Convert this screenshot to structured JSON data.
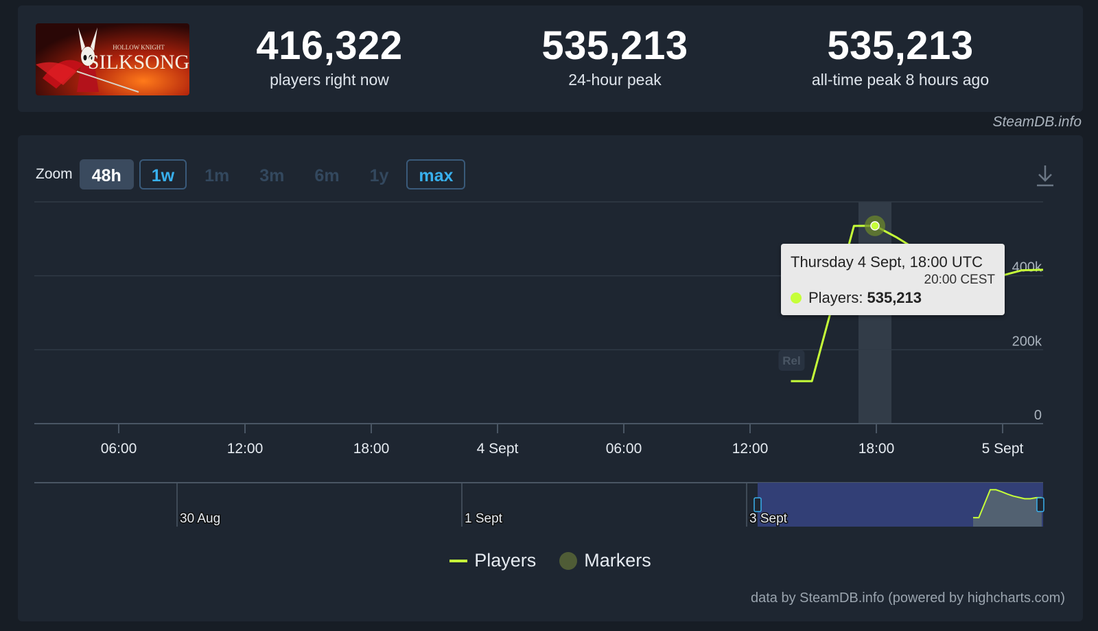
{
  "stats": {
    "current": {
      "value": "416,322",
      "label": "players right now"
    },
    "peak24": {
      "value": "535,213",
      "label": "24-hour peak"
    },
    "alltime": {
      "value": "535,213",
      "label": "all-time peak 8 hours ago"
    }
  },
  "logo": {
    "title": "SILKSONG",
    "subtitle": "HOLLOW KNIGHT"
  },
  "brand": "SteamDB.info",
  "zoom": {
    "label": "Zoom",
    "options": [
      {
        "label": "48h",
        "state": "active"
      },
      {
        "label": "1w",
        "state": "outline"
      },
      {
        "label": "1m",
        "state": "dim"
      },
      {
        "label": "3m",
        "state": "dim"
      },
      {
        "label": "6m",
        "state": "dim"
      },
      {
        "label": "1y",
        "state": "dim"
      },
      {
        "label": "max",
        "state": "outline"
      }
    ]
  },
  "tooltip": {
    "date": "Thursday 4 Sept, 18:00 UTC",
    "local": "20:00 CEST",
    "series": "Players:",
    "value": "535,213"
  },
  "legend": {
    "players": "Players",
    "markers": "Markers"
  },
  "credit": "data by SteamDB.info (powered by highcharts.com)",
  "chart_data": {
    "type": "line",
    "series": [
      {
        "name": "Players",
        "color": "#c6ff39",
        "points": [
          [
            "2025-09-04 14:00",
            115000
          ],
          [
            "2025-09-04 15:00",
            115000
          ],
          [
            "2025-09-04 17:00",
            535000
          ],
          [
            "2025-09-04 18:00",
            535213
          ],
          [
            "2025-09-04 19:00",
            505000
          ],
          [
            "2025-09-04 20:00",
            470000
          ],
          [
            "2025-09-04 21:00",
            440000
          ],
          [
            "2025-09-04 22:00",
            420000
          ],
          [
            "2025-09-04 23:00",
            400000
          ],
          [
            "2025-09-05 00:00",
            400000
          ],
          [
            "2025-09-05 01:00",
            415000
          ],
          [
            "2025-09-05 02:00",
            416322
          ]
        ]
      }
    ],
    "highlight": {
      "x": "2025-09-04 18:00",
      "y": 535213
    },
    "marker": {
      "label": "Rel",
      "x": "2025-09-04 14:00"
    },
    "x_range": [
      "2025-09-03 02:00",
      "2025-09-05 02:00"
    ],
    "x_ticks": [
      "06:00",
      "12:00",
      "18:00",
      "4 Sept",
      "06:00",
      "12:00",
      "18:00",
      "5 Sept"
    ],
    "ylim": [
      0,
      600000
    ],
    "y_ticks": [
      {
        "value": 0,
        "label": "0"
      },
      {
        "value": 200000,
        "label": "200k"
      },
      {
        "value": 400000,
        "label": "400k"
      }
    ],
    "grid": true,
    "navigator": {
      "labels": [
        "30 Aug",
        "1 Sept",
        "3 Sept"
      ]
    }
  }
}
